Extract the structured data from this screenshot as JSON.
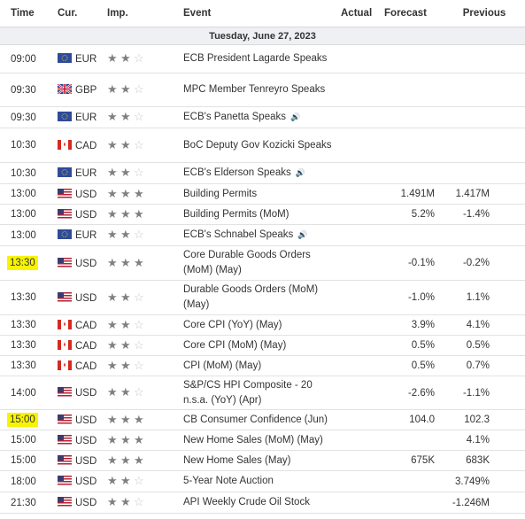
{
  "headers": {
    "time": "Time",
    "cur": "Cur.",
    "imp": "Imp.",
    "event": "Event",
    "actual": "Actual",
    "forecast": "Forecast",
    "previous": "Previous"
  },
  "date": "Tuesday, June 27, 2023",
  "rows": [
    {
      "time": "09:00",
      "cur": "EUR",
      "flag": "eu",
      "imp": 2,
      "event": "ECB President Lagarde Speaks",
      "speech": false,
      "actual": "",
      "forecast": "",
      "previous": "",
      "highlight": false,
      "h": 32
    },
    {
      "time": "09:30",
      "cur": "GBP",
      "flag": "gb",
      "imp": 2,
      "event": "MPC Member Tenreyro Speaks",
      "speech": false,
      "actual": "",
      "forecast": "",
      "previous": "",
      "highlight": false,
      "h": 38
    },
    {
      "time": "09:30",
      "cur": "EUR",
      "flag": "eu",
      "imp": 2,
      "event": "ECB's Panetta Speaks",
      "speech": true,
      "actual": "",
      "forecast": "",
      "previous": "",
      "highlight": false,
      "h": 24
    },
    {
      "time": "10:30",
      "cur": "CAD",
      "flag": "ca",
      "imp": 2,
      "event": "BoC Deputy Gov Kozicki Speaks",
      "speech": false,
      "actual": "",
      "forecast": "",
      "previous": "",
      "highlight": false,
      "h": 39
    },
    {
      "time": "10:30",
      "cur": "EUR",
      "flag": "eu",
      "imp": 2,
      "event": "ECB's Elderson Speaks",
      "speech": true,
      "actual": "",
      "forecast": "",
      "previous": "",
      "highlight": false,
      "h": 24
    },
    {
      "time": "13:00",
      "cur": "USD",
      "flag": "us",
      "imp": 3,
      "event": "Building Permits",
      "speech": false,
      "actual": "",
      "forecast": "1.491M",
      "previous": "1.417M",
      "highlight": false,
      "h": 23
    },
    {
      "time": "13:00",
      "cur": "USD",
      "flag": "us",
      "imp": 3,
      "event": "Building Permits (MoM)",
      "speech": false,
      "actual": "",
      "forecast": "5.2%",
      "previous": "-1.4%",
      "highlight": false,
      "h": 23
    },
    {
      "time": "13:00",
      "cur": "EUR",
      "flag": "eu",
      "imp": 2,
      "event": "ECB's Schnabel Speaks",
      "speech": true,
      "actual": "",
      "forecast": "",
      "previous": "",
      "highlight": false,
      "h": 24
    },
    {
      "time": "13:30",
      "cur": "USD",
      "flag": "us",
      "imp": 3,
      "event": "Core Durable Goods Orders (MoM) (May)",
      "speech": false,
      "actual": "",
      "forecast": "-0.1%",
      "previous": "-0.2%",
      "highlight": true,
      "h": 39
    },
    {
      "time": "13:30",
      "cur": "USD",
      "flag": "us",
      "imp": 2,
      "event": "Durable Goods Orders (MoM) (May)",
      "speech": false,
      "actual": "",
      "forecast": "-1.0%",
      "previous": "1.1%",
      "highlight": false,
      "h": 39
    },
    {
      "time": "13:30",
      "cur": "CAD",
      "flag": "ca",
      "imp": 2,
      "event": "Core CPI (YoY) (May)",
      "speech": false,
      "actual": "",
      "forecast": "3.9%",
      "previous": "4.1%",
      "highlight": false,
      "h": 23
    },
    {
      "time": "13:30",
      "cur": "CAD",
      "flag": "ca",
      "imp": 2,
      "event": "Core CPI (MoM) (May)",
      "speech": false,
      "actual": "",
      "forecast": "0.5%",
      "previous": "0.5%",
      "highlight": false,
      "h": 23
    },
    {
      "time": "13:30",
      "cur": "CAD",
      "flag": "ca",
      "imp": 2,
      "event": "CPI (MoM) (May)",
      "speech": false,
      "actual": "",
      "forecast": "0.5%",
      "previous": "0.7%",
      "highlight": false,
      "h": 23
    },
    {
      "time": "14:00",
      "cur": "USD",
      "flag": "us",
      "imp": 2,
      "event": "S&P/CS HPI Composite - 20 n.s.a. (YoY) (Apr)",
      "speech": false,
      "actual": "",
      "forecast": "-2.6%",
      "previous": "-1.1%",
      "highlight": false,
      "h": 38
    },
    {
      "time": "15:00",
      "cur": "USD",
      "flag": "us",
      "imp": 3,
      "event": "CB Consumer Confidence (Jun)",
      "speech": false,
      "actual": "",
      "forecast": "104.0",
      "previous": "102.3",
      "highlight": true,
      "h": 23
    },
    {
      "time": "15:00",
      "cur": "USD",
      "flag": "us",
      "imp": 3,
      "event": "New Home Sales (MoM) (May)",
      "speech": false,
      "actual": "",
      "forecast": "",
      "previous": "4.1%",
      "highlight": false,
      "h": 23
    },
    {
      "time": "15:00",
      "cur": "USD",
      "flag": "us",
      "imp": 3,
      "event": "New Home Sales (May)",
      "speech": false,
      "actual": "",
      "forecast": "675K",
      "previous": "683K",
      "highlight": false,
      "h": 23
    },
    {
      "time": "18:00",
      "cur": "USD",
      "flag": "us",
      "imp": 2,
      "event": "5-Year Note Auction",
      "speech": false,
      "actual": "",
      "forecast": "",
      "previous": "3.749%",
      "highlight": false,
      "h": 24
    },
    {
      "time": "21:30",
      "cur": "USD",
      "flag": "us",
      "imp": 2,
      "event": "API Weekly Crude Oil Stock",
      "speech": false,
      "actual": "",
      "forecast": "",
      "previous": "-1.246M",
      "highlight": false,
      "h": 24
    }
  ]
}
